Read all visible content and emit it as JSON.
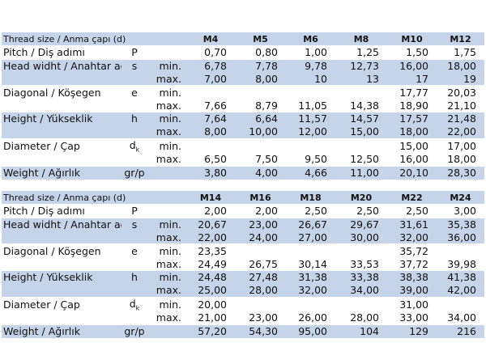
{
  "tables": [
    {
      "header_label": "Thread size / Anma çapı (d)",
      "sizes": [
        "M4",
        "M5",
        "M6",
        "M8",
        "M10",
        "M12"
      ],
      "rows": [
        {
          "label": "Pitch / Diş adımı",
          "symbol": "P",
          "sub": "",
          "values": [
            "0,70",
            "0,80",
            "1,00",
            "1,25",
            "1,50",
            "1,75"
          ],
          "start": true
        },
        {
          "label": "Head widht / Anahtar ağzı",
          "symbol": "s",
          "sub": "min.",
          "values": [
            "6,78",
            "7,78",
            "9,78",
            "12,73",
            "16,00",
            "18,00"
          ],
          "start": true
        },
        {
          "label": "",
          "symbol": "",
          "sub": "max.",
          "values": [
            "7,00",
            "8,00",
            "10",
            "13",
            "17",
            "19"
          ],
          "start": false
        },
        {
          "label": "Diagonal / Köşegen",
          "symbol": "e",
          "sub": "min.",
          "values": [
            "",
            "",
            "",
            "",
            "17,77",
            "20,03"
          ],
          "start": true
        },
        {
          "label": "",
          "symbol": "",
          "sub": "max.",
          "values": [
            "7,66",
            "8,79",
            "11,05",
            "14,38",
            "18,90",
            "21,10"
          ],
          "start": false
        },
        {
          "label": "Height / Yükseklik",
          "symbol": "h",
          "sub": "min.",
          "values": [
            "7,64",
            "6,64",
            "11,57",
            "14,57",
            "17,57",
            "21,48"
          ],
          "start": true
        },
        {
          "label": "",
          "symbol": "",
          "sub": "max.",
          "values": [
            "8,00",
            "10,00",
            "12,00",
            "15,00",
            "18,00",
            "22,00"
          ],
          "start": false
        },
        {
          "label": "Diameter / Çap",
          "symbol": "d",
          "symbol_sub": "k",
          "sub": "min.",
          "values": [
            "",
            "",
            "",
            "",
            "15,00",
            "17,00"
          ],
          "start": true
        },
        {
          "label": "",
          "symbol": "",
          "sub": "max.",
          "values": [
            "6,50",
            "7,50",
            "9,50",
            "12,50",
            "16,00",
            "18,00"
          ],
          "start": false
        },
        {
          "label": "Weight / Ağırlık",
          "symbol": "gr/p",
          "sub": "",
          "values": [
            "3,80",
            "4,00",
            "4,66",
            "11,00",
            "20,10",
            "28,30"
          ],
          "start": true
        }
      ]
    },
    {
      "header_label": "Thread size / Anma çapı (d)",
      "sizes": [
        "M14",
        "M16",
        "M18",
        "M20",
        "M22",
        "M24"
      ],
      "rows": [
        {
          "label": "Pitch / Diş adımı",
          "symbol": "P",
          "sub": "",
          "values": [
            "2,00",
            "2,00",
            "2,50",
            "2,50",
            "2,50",
            "3,00"
          ],
          "start": true
        },
        {
          "label": "Head widht / Anahtar ağzı",
          "symbol": "s",
          "sub": "min.",
          "values": [
            "20,67",
            "23,00",
            "26,67",
            "29,67",
            "31,61",
            "35,38"
          ],
          "start": true
        },
        {
          "label": "",
          "symbol": "",
          "sub": "max.",
          "values": [
            "22,00",
            "24,00",
            "27,00",
            "30,00",
            "32,00",
            "36,00"
          ],
          "start": false
        },
        {
          "label": "Diagonal / Köşegen",
          "symbol": "e",
          "sub": "min.",
          "values": [
            "23,35",
            "",
            "",
            "",
            "35,72",
            ""
          ],
          "start": true
        },
        {
          "label": "",
          "symbol": "",
          "sub": "max.",
          "values": [
            "24,49",
            "26,75",
            "30,14",
            "33,53",
            "37,72",
            "39,98"
          ],
          "start": false
        },
        {
          "label": "Height / Yükseklik",
          "symbol": "h",
          "sub": "min.",
          "values": [
            "24,48",
            "27,48",
            "31,38",
            "33,38",
            "38,38",
            "41,38"
          ],
          "start": true
        },
        {
          "label": "",
          "symbol": "",
          "sub": "max.",
          "values": [
            "25,00",
            "28,00",
            "32,00",
            "34,00",
            "39,00",
            "42,00"
          ],
          "start": false
        },
        {
          "label": "Diameter / Çap",
          "symbol": "d",
          "symbol_sub": "k",
          "sub": "min.",
          "values": [
            "20,00",
            "",
            "",
            "",
            "31,00",
            ""
          ],
          "start": true
        },
        {
          "label": "",
          "symbol": "",
          "sub": "max.",
          "values": [
            "21,00",
            "23,00",
            "26,00",
            "28,00",
            "33,00",
            "34,00"
          ],
          "start": false
        },
        {
          "label": "Weight / Ağırlık",
          "symbol": "gr/p",
          "sub": "",
          "values": [
            "57,20",
            "54,30",
            "95,00",
            "104",
            "129",
            "216"
          ],
          "start": true
        }
      ]
    }
  ],
  "colors": {
    "header_fill": "#c5d4e8",
    "shade_fill": "#c5d4e8",
    "plain_fill": "#ffffff"
  }
}
